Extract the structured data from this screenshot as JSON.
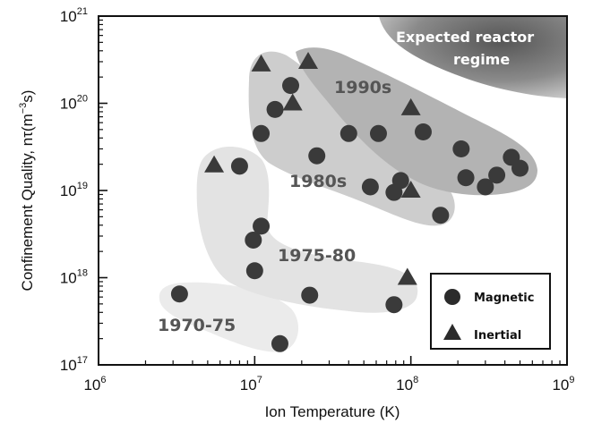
{
  "chart_data": {
    "type": "scatter",
    "xlabel": "Ion Temperature (K)",
    "ylabel": "Confinement Quality, nτ(m",
    "ylabel_exp": "−3",
    "ylabel_tail": "s)",
    "x_scale": "log",
    "y_scale": "log",
    "xlim": [
      1000000,
      1000000000
    ],
    "ylim": [
      1e+17,
      1e+21
    ],
    "x_ticks": [
      {
        "value": 1000000,
        "base": "10",
        "exp": "6"
      },
      {
        "value": 10000000,
        "base": "10",
        "exp": "7"
      },
      {
        "value": 100000000,
        "base": "10",
        "exp": "8"
      },
      {
        "value": 1000000000,
        "base": "10",
        "exp": "9"
      }
    ],
    "y_ticks": [
      {
        "value": 1e+17,
        "base": "10",
        "exp": "17"
      },
      {
        "value": 1e+18,
        "base": "10",
        "exp": "18"
      },
      {
        "value": 1e+19,
        "base": "10",
        "exp": "19"
      },
      {
        "value": 1e+20,
        "base": "10",
        "exp": "20"
      },
      {
        "value": 1e+21,
        "base": "10",
        "exp": "21"
      }
    ],
    "grid": false,
    "legend_position": "bottom-right",
    "series": [
      {
        "name": "Magnetic",
        "marker": "circle",
        "points": [
          {
            "x": 3300000,
            "y": 6.5e+17
          },
          {
            "x": 14500000,
            "y": 1.75e+17
          },
          {
            "x": 22500000,
            "y": 6.3e+17
          },
          {
            "x": 78000000,
            "y": 4.9e+17
          },
          {
            "x": 10000000,
            "y": 1.2e+18
          },
          {
            "x": 9800000,
            "y": 2.7e+18
          },
          {
            "x": 11000000,
            "y": 3.9e+18
          },
          {
            "x": 8000000,
            "y": 1.9e+19
          },
          {
            "x": 11000000,
            "y": 4.5e+19
          },
          {
            "x": 13500000,
            "y": 8.5e+19
          },
          {
            "x": 17000000,
            "y": 1.6e+20
          },
          {
            "x": 25000000,
            "y": 2.5e+19
          },
          {
            "x": 40000000,
            "y": 4.5e+19
          },
          {
            "x": 55000000,
            "y": 1.1e+19
          },
          {
            "x": 78000000,
            "y": 9.5e+18
          },
          {
            "x": 86000000,
            "y": 1.3e+19
          },
          {
            "x": 155000000,
            "y": 5.2e+18
          },
          {
            "x": 62000000,
            "y": 4.5e+19
          },
          {
            "x": 120000000,
            "y": 4.7e+19
          },
          {
            "x": 210000000,
            "y": 3e+19
          },
          {
            "x": 225000000,
            "y": 1.4e+19
          },
          {
            "x": 300000000,
            "y": 1.1e+19
          },
          {
            "x": 355000000,
            "y": 1.5e+19
          },
          {
            "x": 440000000,
            "y": 2.4e+19
          },
          {
            "x": 500000000,
            "y": 1.8e+19
          }
        ]
      },
      {
        "name": "Inertial",
        "marker": "triangle",
        "points": [
          {
            "x": 5500000,
            "y": 1.95e+19
          },
          {
            "x": 11000000,
            "y": 2.8e+20
          },
          {
            "x": 22000000,
            "y": 3e+20
          },
          {
            "x": 17500000,
            "y": 1e+20
          },
          {
            "x": 100000000,
            "y": 8.8e+19
          },
          {
            "x": 100000000,
            "y": 1e+19
          },
          {
            "x": 95000000,
            "y": 1e+18
          }
        ]
      }
    ],
    "regions": [
      {
        "label": "1970-75",
        "label_at": {
          "x": 4500000,
          "y": 3.2e+17
        }
      },
      {
        "label": "1975-80",
        "label_at": {
          "x": 31000000,
          "y": 2.3e+18
        }
      },
      {
        "label": "1980s",
        "label_at": {
          "x": 32000000,
          "y": 1e+19
        }
      },
      {
        "label": "1990s",
        "label_at": {
          "x": 53000000,
          "y": 1.1e+20
        }
      },
      {
        "label": "Expected reactor",
        "label2": "regime"
      }
    ],
    "legend": [
      {
        "label": "Magnetic",
        "marker": "circle"
      },
      {
        "label": "Inertial",
        "marker": "triangle"
      }
    ]
  }
}
